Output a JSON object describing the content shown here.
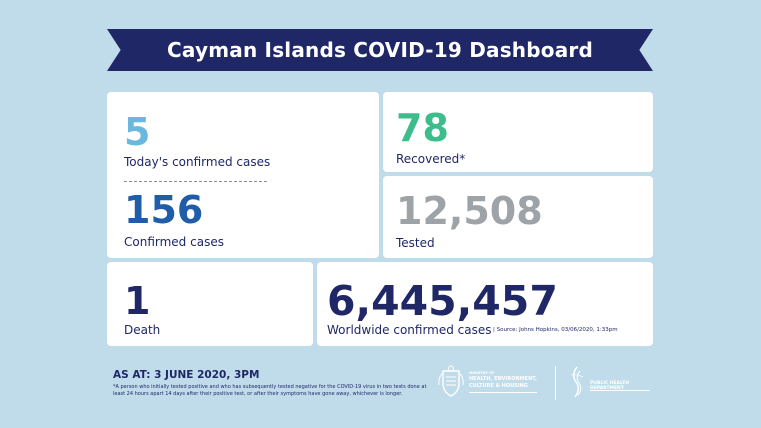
{
  "title": "Cayman Islands COVID-19 Dashboard",
  "today_cases": {
    "value": "5",
    "label": "Today's confirmed cases"
  },
  "confirmed": {
    "value": "156",
    "label": "Confirmed cases"
  },
  "recovered": {
    "value": "78",
    "label": "Recovered*"
  },
  "tested": {
    "value": "12,508",
    "label": "Tested"
  },
  "deaths": {
    "value": "1",
    "label": "Death"
  },
  "worldwide": {
    "value": "6,445,457",
    "label": "Worldwide confirmed cases",
    "source": "| Source: Johns Hopkins, 03/06/2020, 1:33pm"
  },
  "as_at": "AS AT: 3 JUNE 2020, 3PM",
  "footnote": "*A person who initially tested positive and who has subsequently tested negative for the COVID-19 virus in two tests done at least 24 hours apart 14 days after their positive test, or after their symptoms have gone away, whichever is longer.",
  "logos": {
    "ministry": [
      "MINISTRY OF",
      "HEALTH, ENVIRONMENT,",
      "CULTURE & HOUSING"
    ],
    "phd": [
      "PUBLIC HEALTH DEPARTMENT"
    ]
  },
  "colors": {
    "background": "#c0dcea",
    "navy": "#1f2767",
    "today": "#6ab8de",
    "confirmed": "#1f5da8",
    "recovered": "#3dbd8c",
    "tested": "#9ea3a8",
    "deaths": "#1f2767",
    "worldwide": "#1f2767"
  }
}
